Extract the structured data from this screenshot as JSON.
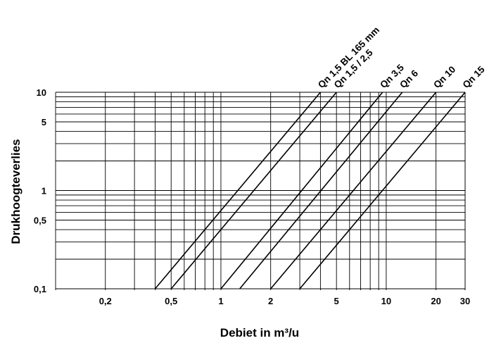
{
  "chart_data": {
    "type": "line",
    "title": "",
    "xlabel": "Debiet in m³/u",
    "ylabel": "Drukhoogteverlies",
    "x_scale": "log",
    "y_scale": "log",
    "xlim": [
      0.1,
      30
    ],
    "ylim": [
      0.1,
      10
    ],
    "grid": true,
    "x_ticks": [
      {
        "value": 0.2,
        "label": "0,2"
      },
      {
        "value": 0.5,
        "label": "0,5"
      },
      {
        "value": 1,
        "label": "1"
      },
      {
        "value": 2,
        "label": "2"
      },
      {
        "value": 5,
        "label": "5"
      },
      {
        "value": 10,
        "label": "10"
      },
      {
        "value": 20,
        "label": "20"
      },
      {
        "value": 30,
        "label": "30"
      }
    ],
    "y_ticks": [
      {
        "value": 0.1,
        "label": "0,1"
      },
      {
        "value": 0.5,
        "label": "0,5"
      },
      {
        "value": 1,
        "label": "1"
      },
      {
        "value": 5,
        "label": "5"
      },
      {
        "value": 10,
        "label": "10"
      }
    ],
    "series": [
      {
        "name": "Qn 1,5 BL 165 mm",
        "x": [
          0.4,
          4.0
        ],
        "y": [
          0.1,
          10
        ]
      },
      {
        "name": "Qn 1,5 / 2,5",
        "x": [
          0.5,
          5.0
        ],
        "y": [
          0.1,
          10
        ]
      },
      {
        "name": "Qn 3,5",
        "x": [
          1.0,
          9.5
        ],
        "y": [
          0.1,
          10
        ]
      },
      {
        "name": "Qn 6",
        "x": [
          1.3,
          12.5
        ],
        "y": [
          0.1,
          10
        ]
      },
      {
        "name": "Qn 10",
        "x": [
          2.0,
          20.0
        ],
        "y": [
          0.1,
          10
        ]
      },
      {
        "name": "Qn 15",
        "x": [
          3.0,
          30.0
        ],
        "y": [
          0.1,
          10
        ]
      }
    ]
  }
}
